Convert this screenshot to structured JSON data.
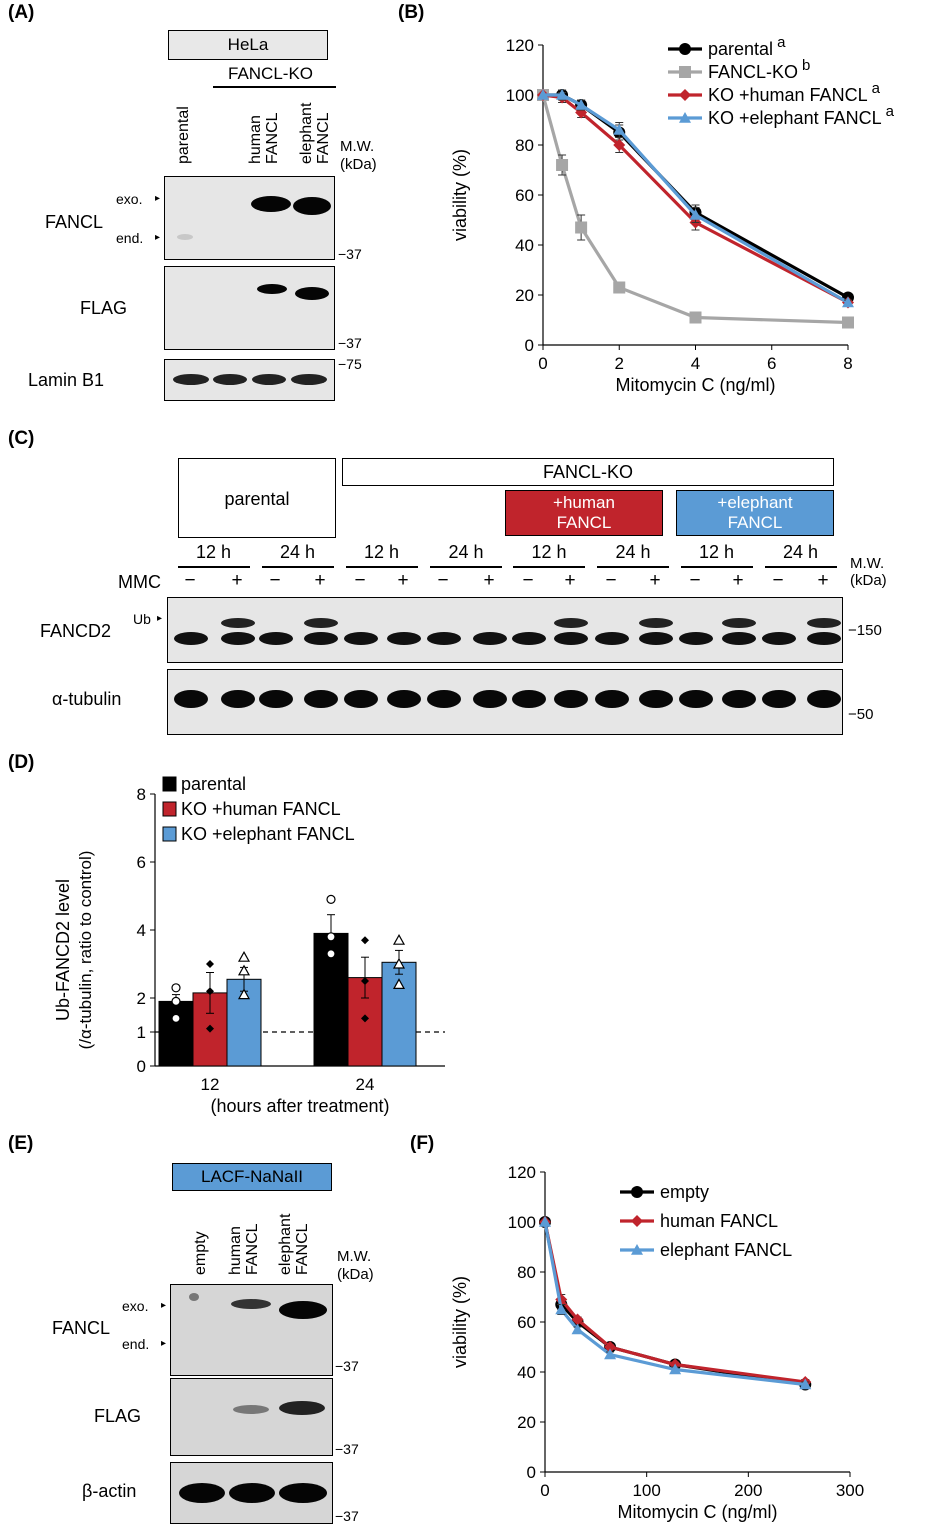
{
  "panels": {
    "A": "(A)",
    "B": "(B)",
    "C": "(C)",
    "D": "(D)",
    "E": "(E)",
    "F": "(F)"
  },
  "colors": {
    "parental": "#000000",
    "ko": "#a6a6a6",
    "human": "#c0242c",
    "elephant": "#5b9bd5",
    "blot_bg": "#e6e6e6"
  },
  "panelA": {
    "cell_line": "HeLa",
    "group": "FANCL-KO",
    "lanes": [
      "parental",
      "human FANCL",
      "elephant FANCL"
    ],
    "mw_header": "M.W.",
    "mw_unit": "(kDa)",
    "fancl_label": "FANCL",
    "exo": "exo.",
    "end": "end.",
    "flag_label": "FLAG",
    "lamin_label": "Lamin B1",
    "mw_37a": "−37",
    "mw_37b": "−37",
    "mw_75": "−75"
  },
  "panelC": {
    "parental": "parental",
    "ko": "FANCL-KO",
    "human": "+human FANCL",
    "elephant": "+elephant FANCL",
    "times": [
      "12 h",
      "24 h",
      "12 h",
      "24 h",
      "12 h",
      "24 h",
      "12 h",
      "24 h"
    ],
    "mmc": "MMC",
    "minus": "−",
    "plus": "+",
    "ub": "Ub",
    "fancd2": "FANCD2",
    "tubulin": "α-tubulin",
    "mw_header": "M.W.",
    "mw_unit": "(kDa)",
    "mw_150": "−150",
    "mw_50": "−50"
  },
  "panelE": {
    "cell_line": "LACF-NaNaII",
    "lanes": [
      "empty",
      "human FANCL",
      "elephant FANCL"
    ],
    "mw_header": "M.W.",
    "mw_unit": "(kDa)",
    "fancl_label": "FANCL",
    "exo": "exo.",
    "end": "end.",
    "flag_label": "FLAG",
    "actin_label": "β-actin",
    "mw_37a": "−37",
    "mw_37b": "−37",
    "mw_37c": "−37"
  },
  "chart_data": [
    {
      "id": "B",
      "type": "line",
      "xlabel": "Mitomycin C (ng/ml)",
      "ylabel": "viability (%)",
      "xlim": [
        0,
        8
      ],
      "ylim": [
        0,
        120
      ],
      "xticks": [
        0,
        2,
        4,
        6,
        8
      ],
      "yticks": [
        0,
        20,
        40,
        60,
        80,
        100,
        120
      ],
      "legend_position": "top-right",
      "series": [
        {
          "name": "parental",
          "sup": "a",
          "color": "#000000",
          "marker": "circle",
          "x": [
            0,
            0.5,
            1,
            2,
            4,
            8
          ],
          "y": [
            100,
            100,
            96,
            85,
            53,
            19
          ],
          "err": [
            0,
            2,
            2,
            3,
            3,
            1
          ]
        },
        {
          "name": "FANCL-KO",
          "sup": "b",
          "color": "#a6a6a6",
          "marker": "square",
          "x": [
            0,
            0.5,
            1,
            2,
            4,
            8
          ],
          "y": [
            100,
            72,
            47,
            23,
            11,
            9
          ],
          "err": [
            0,
            4,
            5,
            2,
            1,
            1
          ]
        },
        {
          "name": "KO +human FANCL",
          "sup": "a",
          "color": "#c0242c",
          "marker": "diamond",
          "x": [
            0,
            0.5,
            1,
            2,
            4,
            8
          ],
          "y": [
            100,
            99,
            93,
            80,
            49,
            17
          ],
          "err": [
            0,
            2,
            2,
            3,
            3,
            1
          ]
        },
        {
          "name": "KO +elephant FANCL",
          "sup": "a",
          "color": "#5b9bd5",
          "marker": "triangle",
          "x": [
            0,
            0.5,
            1,
            2,
            4,
            8
          ],
          "y": [
            100,
            100,
            96,
            86,
            52,
            17
          ],
          "err": [
            0,
            2,
            2,
            3,
            3,
            1
          ]
        }
      ]
    },
    {
      "id": "D",
      "type": "bar",
      "xlabel": "(hours after treatment)",
      "ylabel": "Ub-FANCD2 level",
      "ylabel2": "(/α-tubulin, ratio to control)",
      "categories": [
        "12",
        "24"
      ],
      "ylim": [
        0,
        8
      ],
      "yticks": [
        0,
        1,
        2,
        4,
        6,
        8
      ],
      "reference_line": 1,
      "legend_position": "top-left",
      "series": [
        {
          "name": "parental",
          "color": "#000000",
          "values": [
            1.9,
            3.9
          ],
          "err": [
            0.2,
            0.55
          ],
          "marker": "open-circle",
          "points": [
            [
              1.9,
              2.3,
              1.4
            ],
            [
              4.9,
              3.8,
              3.3
            ]
          ]
        },
        {
          "name": "KO +human FANCL",
          "color": "#c0242c",
          "values": [
            2.15,
            2.6
          ],
          "err": [
            0.6,
            0.6
          ],
          "marker": "diamond",
          "points": [
            [
              3.0,
              2.2,
              1.1
            ],
            [
              3.7,
              2.5,
              1.4
            ]
          ]
        },
        {
          "name": "KO +elephant FANCL",
          "color": "#5b9bd5",
          "values": [
            2.55,
            3.05
          ],
          "err": [
            0.35,
            0.35
          ],
          "marker": "open-triangle",
          "points": [
            [
              3.2,
              2.8,
              2.1
            ],
            [
              3.7,
              3.0,
              2.4
            ]
          ]
        }
      ]
    },
    {
      "id": "F",
      "type": "line",
      "xlabel": "Mitomycin C (ng/ml)",
      "ylabel": "viability (%)",
      "xlim": [
        0,
        300
      ],
      "ylim": [
        0,
        120
      ],
      "xticks": [
        0,
        100,
        200,
        300
      ],
      "yticks": [
        0,
        20,
        40,
        60,
        80,
        100,
        120
      ],
      "legend_position": "top-right",
      "series": [
        {
          "name": "empty",
          "color": "#000000",
          "marker": "circle",
          "x": [
            0,
            16,
            32,
            64,
            128,
            256
          ],
          "y": [
            100,
            67,
            60,
            50,
            43,
            35
          ],
          "err": [
            0,
            2,
            1,
            1,
            1,
            1
          ]
        },
        {
          "name": "human FANCL",
          "color": "#c0242c",
          "marker": "diamond",
          "x": [
            0,
            16,
            32,
            64,
            128,
            256
          ],
          "y": [
            100,
            69,
            61,
            50,
            43,
            36
          ],
          "err": [
            0,
            2,
            1,
            1,
            1,
            1
          ]
        },
        {
          "name": "elephant FANCL",
          "color": "#5b9bd5",
          "marker": "triangle",
          "x": [
            0,
            16,
            32,
            64,
            128,
            256
          ],
          "y": [
            100,
            65,
            57,
            47,
            41,
            35
          ],
          "err": [
            0,
            2,
            1,
            1,
            1,
            1
          ]
        }
      ]
    }
  ]
}
